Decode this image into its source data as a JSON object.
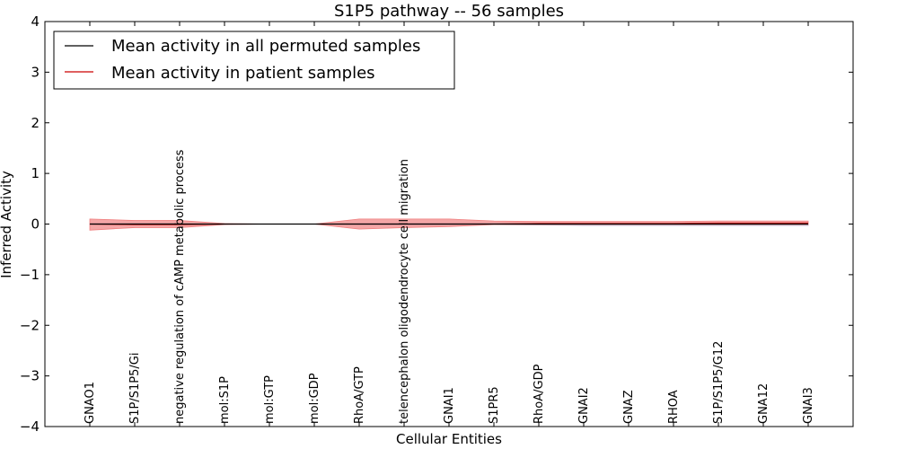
{
  "chart_data": {
    "type": "line",
    "title": "S1P5 pathway -- 56 samples",
    "xlabel": "Cellular Entities",
    "ylabel": "Inferred Activity",
    "ylim": [
      -4,
      4
    ],
    "yticks": [
      "4",
      "3",
      "2",
      "1",
      "0",
      "−1",
      "−2",
      "−3",
      "−4"
    ],
    "categories": [
      "GNAO1",
      "S1P/S1P5/Gi",
      "negative regulation of cAMP metabolic process",
      "mol:S1P",
      "mol:GTP",
      "mol:GDP",
      "RhoA/GTP",
      "telencephalon oligodendrocyte cell migration",
      "GNAI1",
      "S1PR5",
      "RhoA/GDP",
      "GNAI2",
      "GNAZ",
      "RHOA",
      "S1P/S1P5/G12",
      "GNA12",
      "GNAI3"
    ],
    "series": [
      {
        "name": "Mean activity in all permuted samples",
        "color": "#000000",
        "values": [
          0.0,
          0.0,
          0.0,
          0.0,
          0.0,
          0.0,
          0.0,
          0.0,
          0.0,
          0.0,
          0.0,
          0.0,
          0.0,
          0.0,
          0.0,
          0.0,
          0.0
        ],
        "band_lower": [
          -0.01,
          -0.01,
          -0.01,
          0.0,
          0.0,
          0.0,
          -0.01,
          -0.01,
          -0.01,
          -0.01,
          -0.02,
          -0.03,
          -0.03,
          -0.03,
          -0.03,
          -0.03,
          -0.03
        ],
        "band_upper": [
          0.01,
          0.01,
          0.01,
          0.0,
          0.0,
          0.0,
          0.01,
          0.01,
          0.01,
          0.01,
          0.01,
          0.01,
          0.01,
          0.01,
          0.01,
          0.01,
          0.01
        ],
        "band_color": "#c7c7dd"
      },
      {
        "name": "Mean activity in patient samples",
        "color": "#cc0000",
        "values": [
          0.0,
          -0.01,
          -0.01,
          0.0,
          0.0,
          0.0,
          0.0,
          0.0,
          0.0,
          0.0,
          0.01,
          0.01,
          0.01,
          0.01,
          0.02,
          0.02,
          0.02
        ],
        "band_lower": [
          -0.12,
          -0.07,
          -0.07,
          -0.01,
          0.0,
          0.0,
          -0.1,
          -0.07,
          -0.05,
          -0.01,
          -0.01,
          -0.01,
          -0.01,
          -0.01,
          -0.01,
          -0.01,
          -0.01
        ],
        "band_upper": [
          0.1,
          0.07,
          0.07,
          0.01,
          0.0,
          0.0,
          0.1,
          0.1,
          0.1,
          0.06,
          0.05,
          0.05,
          0.05,
          0.05,
          0.06,
          0.06,
          0.06
        ],
        "band_color": "#f08080"
      }
    ],
    "legend": {
      "placement": "top-left",
      "entries": [
        "Mean activity in all permuted samples",
        "Mean activity in patient samples"
      ]
    }
  }
}
